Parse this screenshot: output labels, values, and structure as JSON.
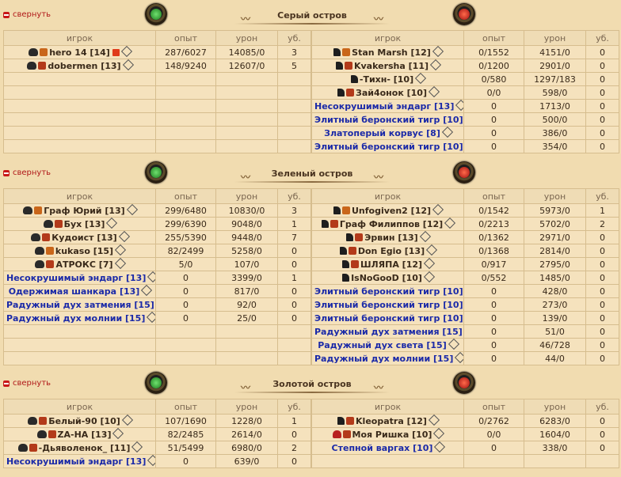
{
  "collapse_label": "свернуть",
  "columns": {
    "player": "игрок",
    "exp": "опыт",
    "dmg": "урон",
    "kills": "уб."
  },
  "islands": [
    {
      "title": "Серый остров",
      "left": [
        {
          "name": "hero 14 [14]",
          "icons": [
            "skull",
            "rank"
          ],
          "plus": true,
          "exp": "287/6027",
          "dmg": "14085/0",
          "kills": "3"
        },
        {
          "name": "dobermen [13]",
          "icons": [
            "skull",
            "rank2"
          ],
          "exp": "148/9240",
          "dmg": "12607/0",
          "kills": "5"
        }
      ],
      "right": [
        {
          "name": "Stan Marsh [12]",
          "icons": [
            "horns",
            "rank"
          ],
          "exp": "0/1552",
          "dmg": "4151/0",
          "kills": "0"
        },
        {
          "name": "Kvakersha [11]",
          "icons": [
            "horns",
            "rank2"
          ],
          "exp": "0/1200",
          "dmg": "2901/0",
          "kills": "0"
        },
        {
          "name": "-Тихн- [10]",
          "icons": [
            "horns"
          ],
          "exp": "0/580",
          "dmg": "1297/183",
          "kills": "0"
        },
        {
          "name": "Зай4онок [10]",
          "icons": [
            "horns",
            "rank2"
          ],
          "exp": "0/0",
          "dmg": "598/0",
          "kills": "0"
        },
        {
          "name": "Несокрушимый эндарг [13]",
          "bot": true,
          "exp": "0",
          "dmg": "1713/0",
          "kills": "0"
        },
        {
          "name": "Элитный беронский тигр [10]",
          "bot": true,
          "exp": "0",
          "dmg": "500/0",
          "kills": "0"
        },
        {
          "name": "Златоперый корвус [8]",
          "bot": true,
          "exp": "0",
          "dmg": "386/0",
          "kills": "0"
        },
        {
          "name": "Элитный беронский тигр [10]",
          "bot": true,
          "exp": "0",
          "dmg": "354/0",
          "kills": "0"
        }
      ]
    },
    {
      "title": "Зеленый остров",
      "left": [
        {
          "name": "Граф Юрий [13]",
          "icons": [
            "skull",
            "rank"
          ],
          "exp": "299/6480",
          "dmg": "10830/0",
          "kills": "3"
        },
        {
          "name": "Бух [13]",
          "icons": [
            "skull",
            "rank2"
          ],
          "exp": "299/6390",
          "dmg": "9048/0",
          "kills": "1"
        },
        {
          "name": "Кудоист [13]",
          "icons": [
            "skull",
            "rank2"
          ],
          "exp": "255/5390",
          "dmg": "9448/0",
          "kills": "7"
        },
        {
          "name": "kukaso [15]",
          "icons": [
            "skull",
            "rank"
          ],
          "exp": "82/2499",
          "dmg": "5258/0",
          "kills": "0"
        },
        {
          "name": "АТРОКС [7]",
          "icons": [
            "skull",
            "rank2"
          ],
          "exp": "5/0",
          "dmg": "107/0",
          "kills": "0"
        },
        {
          "name": "Несокрушимый эндарг [13]",
          "bot": true,
          "exp": "0",
          "dmg": "3399/0",
          "kills": "1"
        },
        {
          "name": "Одержимая шанкара [13]",
          "bot": true,
          "exp": "0",
          "dmg": "817/0",
          "kills": "0"
        },
        {
          "name": "Радужный дух затмения [15]",
          "bot": true,
          "exp": "0",
          "dmg": "92/0",
          "kills": "0"
        },
        {
          "name": "Радужный дух молнии [15]",
          "bot": true,
          "exp": "0",
          "dmg": "25/0",
          "kills": "0"
        }
      ],
      "right": [
        {
          "name": "Unfogiven2 [12]",
          "icons": [
            "horns",
            "rank"
          ],
          "exp": "0/1542",
          "dmg": "5973/0",
          "kills": "1"
        },
        {
          "name": "Граф Филиппов [12]",
          "icons": [
            "horns",
            "rank2"
          ],
          "exp": "0/2213",
          "dmg": "5702/0",
          "kills": "2"
        },
        {
          "name": "Эрвин [13]",
          "icons": [
            "horns",
            "rank2"
          ],
          "exp": "0/1362",
          "dmg": "2971/0",
          "kills": "0"
        },
        {
          "name": "Don Egio [13]",
          "icons": [
            "horns",
            "rank2"
          ],
          "exp": "0/1368",
          "dmg": "2814/0",
          "kills": "0"
        },
        {
          "name": "ШЛЯПА [12]",
          "icons": [
            "horns",
            "rank2"
          ],
          "exp": "0/917",
          "dmg": "2795/0",
          "kills": "0"
        },
        {
          "name": "IsNoGooD [10]",
          "icons": [
            "horns"
          ],
          "exp": "0/552",
          "dmg": "1485/0",
          "kills": "0"
        },
        {
          "name": "Элитный беронский тигр [10]",
          "bot": true,
          "exp": "0",
          "dmg": "428/0",
          "kills": "0"
        },
        {
          "name": "Элитный беронский тигр [10]",
          "bot": true,
          "exp": "0",
          "dmg": "273/0",
          "kills": "0"
        },
        {
          "name": "Элитный беронский тигр [10]",
          "bot": true,
          "exp": "0",
          "dmg": "139/0",
          "kills": "0"
        },
        {
          "name": "Радужный дух затмения [15]",
          "bot": true,
          "exp": "0",
          "dmg": "51/0",
          "kills": "0"
        },
        {
          "name": "Радужный дух света [15]",
          "bot": true,
          "exp": "0",
          "dmg": "46/728",
          "kills": "0"
        },
        {
          "name": "Радужный дух молнии [15]",
          "bot": true,
          "exp": "0",
          "dmg": "44/0",
          "kills": "0"
        }
      ]
    },
    {
      "title": "Золотой остров",
      "left": [
        {
          "name": "Белый-90 [10]",
          "icons": [
            "skull",
            "rank2"
          ],
          "exp": "107/1690",
          "dmg": "1228/0",
          "kills": "1"
        },
        {
          "name": "ZA-HA [13]",
          "icons": [
            "skull",
            "rank2"
          ],
          "exp": "82/2485",
          "dmg": "2614/0",
          "kills": "0"
        },
        {
          "name": "-Дьяволенок_ [11]",
          "icons": [
            "skull",
            "rank2"
          ],
          "exp": "51/5499",
          "dmg": "6980/0",
          "kills": "2"
        },
        {
          "name": "Несокрушимый эндарг [13]",
          "bot": true,
          "exp": "0",
          "dmg": "639/0",
          "kills": "0"
        }
      ],
      "right": [
        {
          "name": "Kleopatra [12]",
          "icons": [
            "horns",
            "rank2"
          ],
          "exp": "0/2762",
          "dmg": "6283/0",
          "kills": "0"
        },
        {
          "name": "Моя Ришка [10]",
          "icons": [
            "heart",
            "rank2"
          ],
          "exp": "0/0",
          "dmg": "1604/0",
          "kills": "0"
        },
        {
          "name": "Степной варгах [10]",
          "bot": true,
          "exp": "0",
          "dmg": "338/0",
          "kills": "0"
        }
      ]
    }
  ]
}
